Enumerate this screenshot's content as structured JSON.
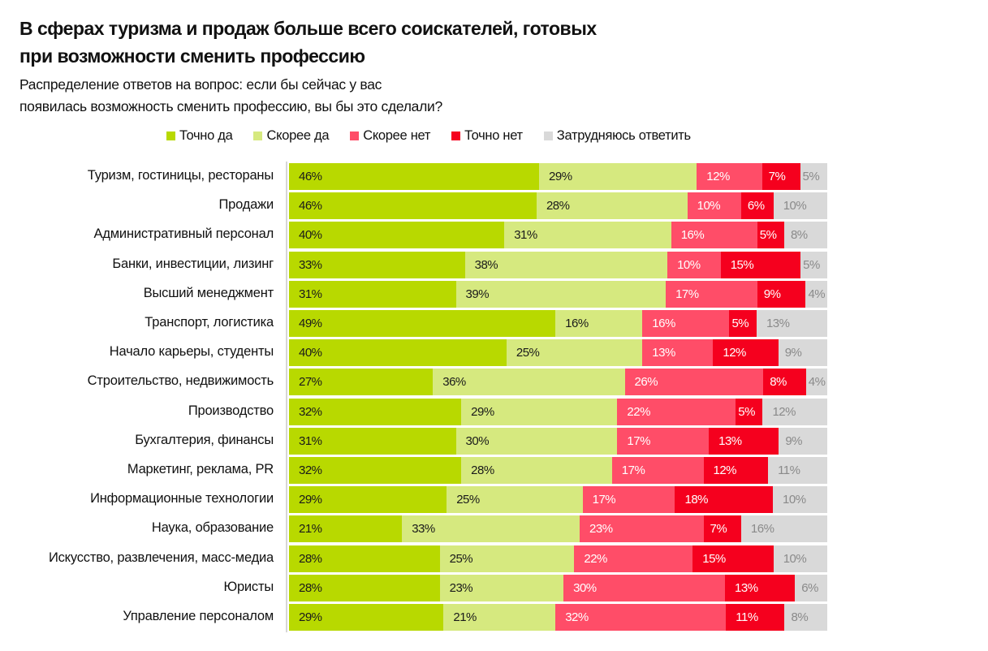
{
  "header": {
    "title_line1": "В сферах туризма и продаж больше всего соискателей, готовых",
    "title_line2": "при возможности сменить профессию",
    "subtitle_line1": "Распределение ответов на вопрос: если бы сейчас у вас",
    "subtitle_line2": "появилась возможность сменить профессию, вы бы это сделали?"
  },
  "chart_data": {
    "type": "bar",
    "orientation": "horizontal",
    "stacked": true,
    "normalized_percent": true,
    "title": "В сферах туризма и продаж больше всего соискателей, готовых при возможности сменить профессию",
    "subtitle": "Распределение ответов на вопрос: если бы сейчас у вас появилась возможность сменить профессию, вы бы это сделали?",
    "xlabel": "",
    "ylabel": "",
    "legend_position": "top",
    "grid": false,
    "categories": [
      "Туризм, гостиницы, рестораны",
      "Продажи",
      "Административный персонал",
      "Банки, инвестиции, лизинг",
      "Высший менеджмент",
      "Транспорт, логистика",
      "Начало карьеры, студенты",
      "Строительство, недвижимость",
      "Производство",
      "Бухгалтерия, финансы",
      "Маркетинг, реклама, PR",
      "Информационные технологии",
      "Наука, образование",
      "Искусство, развлечения, масс-медиа",
      "Юристы",
      "Управление персоналом"
    ],
    "series": [
      {
        "name": "Точно да",
        "color": "#b8d900",
        "label_color": "#1a1a1a",
        "values": [
          46,
          46,
          40,
          33,
          31,
          49,
          40,
          27,
          32,
          31,
          32,
          29,
          21,
          28,
          28,
          29
        ]
      },
      {
        "name": "Скорее да",
        "color": "#d6e97f",
        "label_color": "#1a1a1a",
        "values": [
          29,
          28,
          31,
          38,
          39,
          16,
          25,
          36,
          29,
          30,
          28,
          25,
          33,
          25,
          23,
          21
        ]
      },
      {
        "name": "Скорее нет",
        "color": "#ff4d68",
        "label_color": "#ffffff",
        "values": [
          12,
          10,
          16,
          10,
          17,
          16,
          13,
          26,
          22,
          17,
          17,
          17,
          23,
          22,
          30,
          32
        ]
      },
      {
        "name": "Точно нет",
        "color": "#f5001e",
        "label_color": "#ffffff",
        "values": [
          7,
          6,
          5,
          15,
          9,
          5,
          12,
          8,
          5,
          13,
          12,
          18,
          7,
          15,
          13,
          11
        ]
      },
      {
        "name": "Затрудняюсь ответить",
        "color": "#d9d9d9",
        "label_color": "#8a8a8a",
        "values": [
          5,
          10,
          8,
          5,
          4,
          13,
          9,
          4,
          12,
          9,
          11,
          10,
          16,
          10,
          6,
          8
        ]
      }
    ],
    "value_suffix": "%"
  }
}
